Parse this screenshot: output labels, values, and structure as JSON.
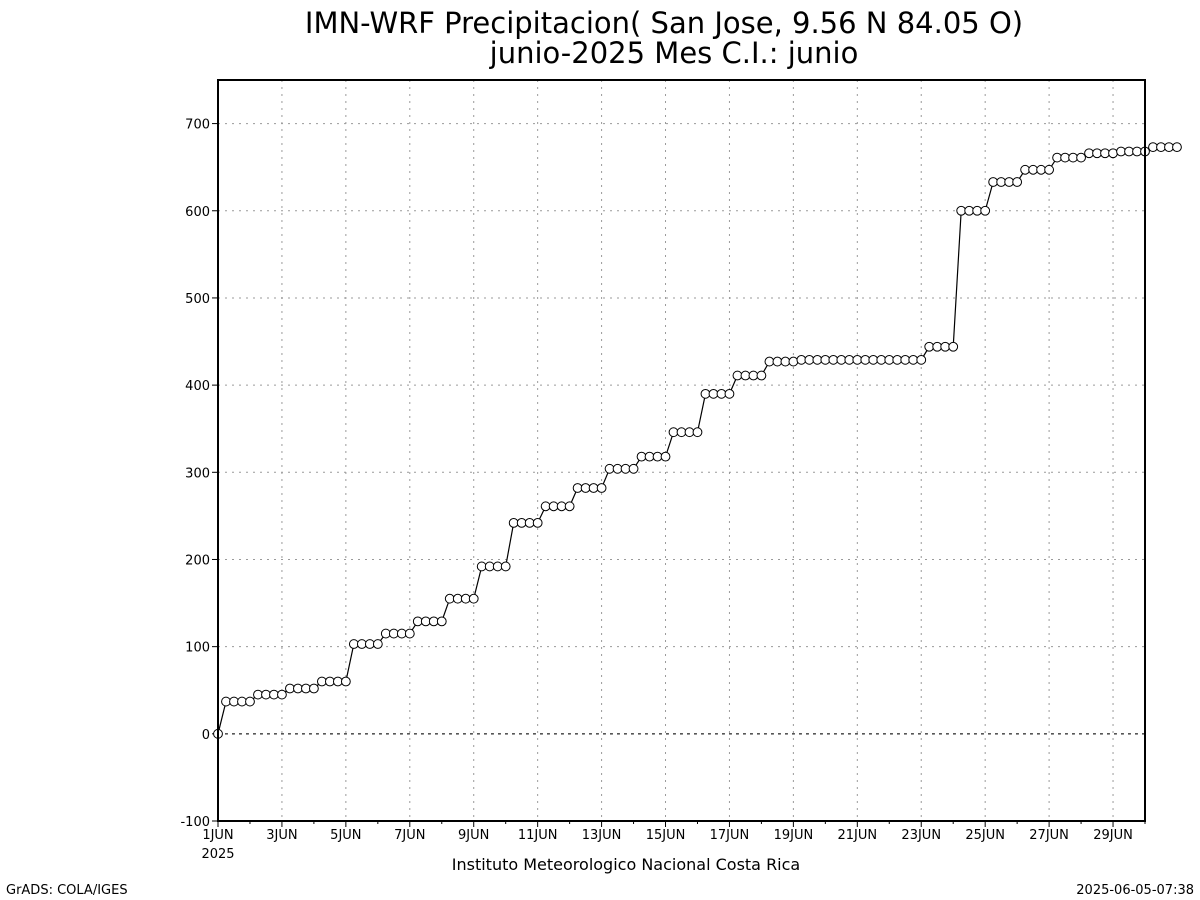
{
  "chart_data": {
    "type": "line",
    "title": "IMN-WRF  Precipitacion( San Jose, 9.56  N 84.05  O)",
    "subtitle": "junio-2025 Mes C.I.: junio",
    "xlabel": "",
    "ylabel": "",
    "x_tick_labels": [
      "1JUN",
      "3JUN",
      "5JUN",
      "7JUN",
      "9JUN",
      "11JUN",
      "13JUN",
      "15JUN",
      "17JUN",
      "19JUN",
      "21JUN",
      "23JUN",
      "25JUN",
      "27JUN",
      "29JUN"
    ],
    "x_tick_days": [
      1,
      3,
      5,
      7,
      9,
      11,
      13,
      15,
      17,
      19,
      21,
      23,
      25,
      27,
      29
    ],
    "x_secondary_label": "2025",
    "xlim": [
      1,
      30
    ],
    "ylim": [
      -100,
      750
    ],
    "y_ticks": [
      -100,
      0,
      100,
      200,
      300,
      400,
      500,
      600,
      700
    ],
    "grid": true,
    "marker": "open-circle",
    "series": [
      {
        "step_days": 0.25,
        "start_day": 1,
        "values": [
          0,
          37,
          37,
          37,
          37,
          45,
          45,
          45,
          45,
          52,
          52,
          52,
          52,
          60,
          60,
          60,
          60,
          103,
          103,
          103,
          103,
          115,
          115,
          115,
          115,
          129,
          129,
          129,
          129,
          155,
          155,
          155,
          155,
          192,
          192,
          192,
          192,
          242,
          242,
          242,
          242,
          261,
          261,
          261,
          261,
          282,
          282,
          282,
          282,
          304,
          304,
          304,
          304,
          318,
          318,
          318,
          318,
          346,
          346,
          346,
          346,
          390,
          390,
          390,
          390,
          411,
          411,
          411,
          411,
          427,
          427,
          427,
          427,
          429,
          429,
          429,
          429,
          429,
          429,
          429,
          429,
          429,
          429,
          429,
          429,
          429,
          429,
          429,
          429,
          444,
          444,
          444,
          444,
          600,
          600,
          600,
          600,
          633,
          633,
          633,
          633,
          647,
          647,
          647,
          647,
          661,
          661,
          661,
          661,
          666,
          666,
          666,
          666,
          668,
          668,
          668,
          668,
          673,
          673,
          673,
          673
        ]
      }
    ]
  },
  "footer": {
    "institution": "Instituto Meteorologico Nacional Costa Rica",
    "credit": "GrADS: COLA/IGES",
    "timestamp": "2025-06-05-07:38"
  }
}
